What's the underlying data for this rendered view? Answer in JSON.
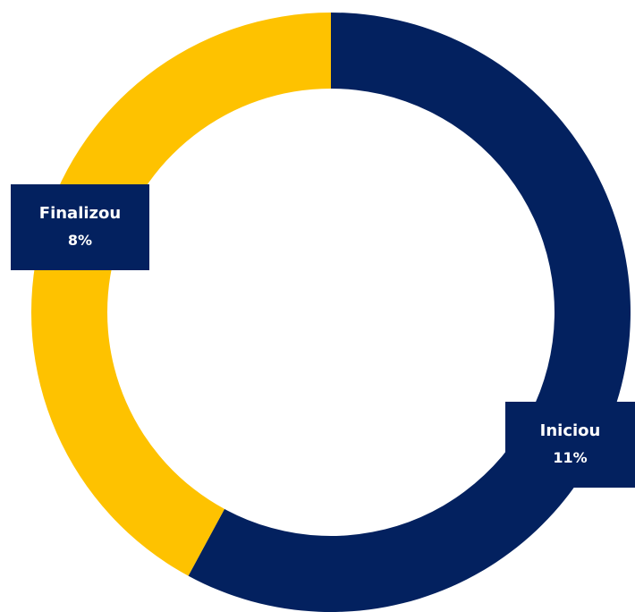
{
  "chart_data": {
    "type": "pie",
    "categories": [
      "Iniciou",
      "Finalizou"
    ],
    "values": [
      11,
      8
    ],
    "value_labels": [
      "11%",
      "8%"
    ],
    "colors": [
      "#03215f",
      "#fec200"
    ],
    "donut": true,
    "title": "",
    "legend": "none"
  }
}
